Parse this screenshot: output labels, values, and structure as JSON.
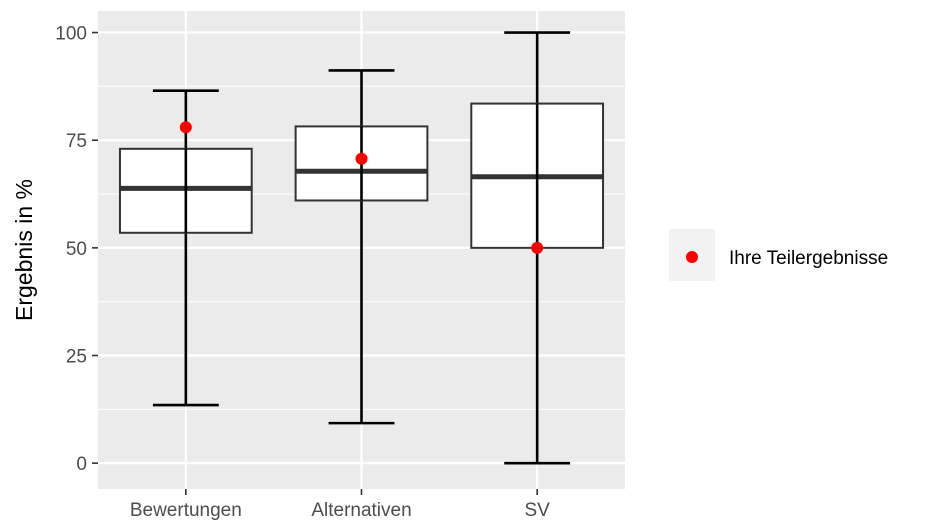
{
  "chart_data": {
    "type": "boxplot",
    "title": "",
    "xlabel": "",
    "ylabel": "Ergebnis in %",
    "ylim": [
      -6,
      105
    ],
    "yticks": [
      0,
      25,
      50,
      75,
      100
    ],
    "categories": [
      "Bewertungen",
      "Alternativen",
      "SV"
    ],
    "boxes": [
      {
        "category": "Bewertungen",
        "whisker_low": 13.5,
        "q1": 53.5,
        "median": 63.8,
        "q3": 73,
        "whisker_high": 86.5
      },
      {
        "category": "Alternativen",
        "whisker_low": 9.3,
        "q1": 61,
        "median": 67.8,
        "q3": 78.2,
        "whisker_high": 91.2
      },
      {
        "category": "SV",
        "whisker_low": 0,
        "q1": 50,
        "median": 66.5,
        "q3": 83.5,
        "whisker_high": 100
      }
    ],
    "points": {
      "name": "Ihre Teilergebnisse",
      "color": "#ff0000",
      "values": [
        78,
        70.7,
        50
      ]
    },
    "grid": true,
    "legend": {
      "position": "right",
      "entries": [
        "Ihre Teilergebnisse"
      ]
    },
    "colors": {
      "panel": "#ebebeb",
      "grid": "#ffffff",
      "box_fill": "#ffffff",
      "box_stroke": "#333333",
      "whisker": "#000000"
    }
  }
}
